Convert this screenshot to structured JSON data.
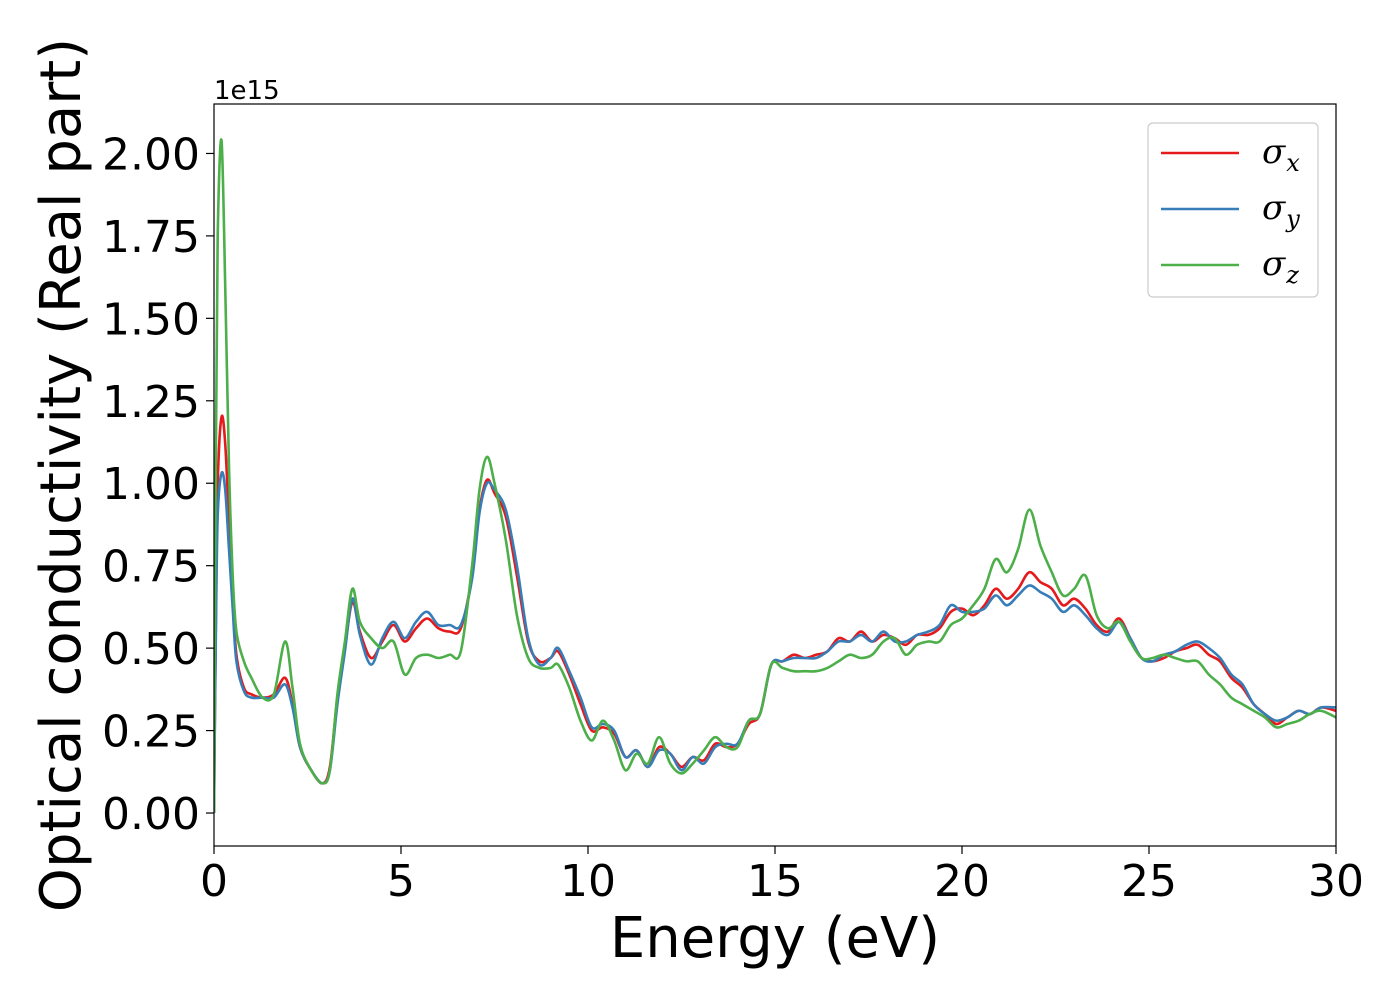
{
  "chart_data": {
    "type": "line",
    "title": "",
    "xlabel": "Energy (eV)",
    "ylabel": "Optical conductivity (Real part)",
    "y_offset_text": "1e15",
    "y_multiplier": 1000000000000000.0,
    "xlim": [
      0,
      30
    ],
    "ylim": [
      -0.1,
      2.15
    ],
    "xticks": [
      0,
      5,
      10,
      15,
      20,
      25,
      30
    ],
    "xtick_labels": [
      "0",
      "5",
      "10",
      "15",
      "20",
      "25",
      "30"
    ],
    "yticks": [
      0.0,
      0.25,
      0.5,
      0.75,
      1.0,
      1.25,
      1.5,
      1.75,
      2.0
    ],
    "ytick_labels": [
      "0.00",
      "0.25",
      "0.50",
      "0.75",
      "1.00",
      "1.25",
      "1.50",
      "1.75",
      "2.00"
    ],
    "grid": false,
    "legend_position": "top-right",
    "series": [
      {
        "name": "σx",
        "symbol": "σ",
        "subscript": "x",
        "color": "#e41a1c",
        "x": [
          0,
          0.05,
          0.1,
          0.2,
          0.3,
          0.4,
          0.5,
          0.6,
          0.8,
          1.0,
          1.3,
          1.6,
          1.9,
          2.1,
          2.3,
          2.6,
          2.9,
          3.1,
          3.3,
          3.5,
          3.7,
          3.9,
          4.2,
          4.5,
          4.8,
          5.1,
          5.4,
          5.7,
          6.0,
          6.3,
          6.6,
          6.9,
          7.1,
          7.3,
          7.5,
          7.8,
          8.1,
          8.4,
          8.7,
          9.0,
          9.2,
          9.5,
          9.8,
          10.1,
          10.4,
          10.7,
          11.0,
          11.3,
          11.6,
          11.9,
          12.2,
          12.5,
          12.8,
          13.1,
          13.4,
          13.7,
          14.0,
          14.3,
          14.6,
          14.9,
          15.2,
          15.5,
          15.8,
          16.1,
          16.4,
          16.7,
          17.0,
          17.3,
          17.6,
          17.9,
          18.2,
          18.5,
          18.8,
          19.1,
          19.4,
          19.7,
          20.0,
          20.3,
          20.6,
          20.9,
          21.2,
          21.5,
          21.8,
          22.1,
          22.4,
          22.7,
          23.0,
          23.3,
          23.6,
          23.9,
          24.2,
          24.5,
          24.8,
          25.1,
          25.4,
          25.7,
          26.0,
          26.3,
          26.6,
          26.9,
          27.2,
          27.5,
          27.8,
          28.1,
          28.4,
          28.7,
          29.0,
          29.3,
          29.6,
          30.0
        ],
        "y": [
          0.0,
          0.6,
          1.0,
          1.2,
          1.12,
          0.88,
          0.65,
          0.48,
          0.38,
          0.36,
          0.35,
          0.36,
          0.41,
          0.33,
          0.2,
          0.13,
          0.09,
          0.14,
          0.35,
          0.5,
          0.64,
          0.55,
          0.47,
          0.52,
          0.57,
          0.52,
          0.56,
          0.59,
          0.56,
          0.55,
          0.56,
          0.72,
          0.92,
          1.01,
          0.97,
          0.9,
          0.72,
          0.52,
          0.46,
          0.47,
          0.49,
          0.42,
          0.33,
          0.25,
          0.26,
          0.24,
          0.17,
          0.19,
          0.14,
          0.2,
          0.18,
          0.14,
          0.17,
          0.16,
          0.21,
          0.2,
          0.21,
          0.27,
          0.3,
          0.45,
          0.46,
          0.48,
          0.47,
          0.48,
          0.49,
          0.53,
          0.52,
          0.55,
          0.52,
          0.54,
          0.53,
          0.51,
          0.54,
          0.54,
          0.56,
          0.61,
          0.62,
          0.6,
          0.63,
          0.68,
          0.65,
          0.68,
          0.73,
          0.7,
          0.68,
          0.63,
          0.65,
          0.62,
          0.57,
          0.55,
          0.59,
          0.53,
          0.47,
          0.46,
          0.47,
          0.49,
          0.5,
          0.51,
          0.48,
          0.46,
          0.41,
          0.38,
          0.33,
          0.3,
          0.27,
          0.29,
          0.31,
          0.3,
          0.32,
          0.31
        ]
      },
      {
        "name": "σy",
        "symbol": "σ",
        "subscript": "y",
        "color": "#377eb8",
        "x": [
          0,
          0.05,
          0.1,
          0.2,
          0.3,
          0.4,
          0.5,
          0.6,
          0.8,
          1.0,
          1.3,
          1.6,
          1.9,
          2.1,
          2.3,
          2.6,
          2.9,
          3.1,
          3.3,
          3.5,
          3.7,
          3.9,
          4.2,
          4.5,
          4.8,
          5.1,
          5.4,
          5.7,
          6.0,
          6.3,
          6.6,
          6.9,
          7.1,
          7.3,
          7.5,
          7.8,
          8.1,
          8.4,
          8.7,
          9.0,
          9.2,
          9.5,
          9.8,
          10.1,
          10.4,
          10.7,
          11.0,
          11.3,
          11.6,
          11.9,
          12.2,
          12.5,
          12.8,
          13.1,
          13.4,
          13.7,
          14.0,
          14.3,
          14.6,
          14.9,
          15.2,
          15.5,
          15.8,
          16.1,
          16.4,
          16.7,
          17.0,
          17.3,
          17.6,
          17.9,
          18.2,
          18.5,
          18.8,
          19.1,
          19.4,
          19.7,
          20.0,
          20.3,
          20.6,
          20.9,
          21.2,
          21.5,
          21.8,
          22.1,
          22.4,
          22.7,
          23.0,
          23.3,
          23.6,
          23.9,
          24.2,
          24.5,
          24.8,
          25.1,
          25.4,
          25.7,
          26.0,
          26.3,
          26.6,
          26.9,
          27.2,
          27.5,
          27.8,
          28.1,
          28.4,
          28.7,
          29.0,
          29.3,
          29.6,
          30.0
        ],
        "y": [
          0.0,
          0.55,
          0.9,
          1.03,
          0.98,
          0.8,
          0.62,
          0.46,
          0.37,
          0.35,
          0.35,
          0.35,
          0.39,
          0.32,
          0.2,
          0.13,
          0.09,
          0.13,
          0.33,
          0.49,
          0.65,
          0.54,
          0.45,
          0.53,
          0.58,
          0.53,
          0.58,
          0.61,
          0.57,
          0.57,
          0.57,
          0.71,
          0.91,
          1.0,
          0.98,
          0.92,
          0.75,
          0.53,
          0.45,
          0.47,
          0.5,
          0.43,
          0.35,
          0.26,
          0.27,
          0.25,
          0.17,
          0.19,
          0.14,
          0.19,
          0.18,
          0.13,
          0.17,
          0.15,
          0.2,
          0.21,
          0.21,
          0.28,
          0.3,
          0.45,
          0.46,
          0.47,
          0.47,
          0.47,
          0.49,
          0.52,
          0.52,
          0.54,
          0.52,
          0.55,
          0.52,
          0.52,
          0.54,
          0.55,
          0.57,
          0.63,
          0.61,
          0.61,
          0.62,
          0.66,
          0.63,
          0.66,
          0.69,
          0.67,
          0.65,
          0.61,
          0.63,
          0.6,
          0.56,
          0.54,
          0.58,
          0.53,
          0.47,
          0.46,
          0.48,
          0.49,
          0.51,
          0.52,
          0.5,
          0.47,
          0.42,
          0.39,
          0.33,
          0.3,
          0.28,
          0.29,
          0.31,
          0.3,
          0.32,
          0.32
        ]
      },
      {
        "name": "σz",
        "symbol": "σ",
        "subscript": "z",
        "color": "#4daf4a",
        "x": [
          0,
          0.05,
          0.1,
          0.2,
          0.3,
          0.4,
          0.5,
          0.6,
          0.8,
          1.0,
          1.3,
          1.6,
          1.9,
          2.1,
          2.3,
          2.6,
          2.9,
          3.1,
          3.3,
          3.5,
          3.7,
          3.9,
          4.2,
          4.5,
          4.8,
          5.1,
          5.4,
          5.7,
          6.0,
          6.3,
          6.6,
          6.9,
          7.1,
          7.3,
          7.5,
          7.8,
          8.1,
          8.4,
          8.7,
          9.0,
          9.2,
          9.5,
          9.8,
          10.1,
          10.4,
          10.7,
          11.0,
          11.3,
          11.6,
          11.9,
          12.2,
          12.5,
          12.8,
          13.1,
          13.4,
          13.7,
          14.0,
          14.3,
          14.6,
          14.9,
          15.2,
          15.5,
          15.8,
          16.1,
          16.4,
          16.7,
          17.0,
          17.3,
          17.6,
          17.9,
          18.2,
          18.5,
          18.8,
          19.1,
          19.4,
          19.7,
          20.0,
          20.3,
          20.6,
          20.9,
          21.2,
          21.5,
          21.8,
          22.1,
          22.4,
          22.7,
          23.0,
          23.3,
          23.6,
          23.9,
          24.2,
          24.5,
          24.8,
          25.1,
          25.4,
          25.7,
          26.0,
          26.3,
          26.6,
          26.9,
          27.2,
          27.5,
          27.8,
          28.1,
          28.4,
          28.7,
          29.0,
          29.3,
          29.6,
          30.0
        ],
        "y": [
          0.0,
          1.1,
          1.75,
          2.04,
          1.6,
          1.05,
          0.72,
          0.55,
          0.46,
          0.41,
          0.35,
          0.36,
          0.52,
          0.38,
          0.21,
          0.13,
          0.09,
          0.13,
          0.36,
          0.52,
          0.68,
          0.58,
          0.53,
          0.5,
          0.52,
          0.42,
          0.47,
          0.48,
          0.47,
          0.48,
          0.49,
          0.75,
          0.98,
          1.08,
          1.0,
          0.83,
          0.6,
          0.47,
          0.44,
          0.44,
          0.45,
          0.38,
          0.28,
          0.22,
          0.28,
          0.22,
          0.13,
          0.18,
          0.15,
          0.23,
          0.15,
          0.12,
          0.15,
          0.19,
          0.23,
          0.2,
          0.2,
          0.28,
          0.3,
          0.45,
          0.44,
          0.43,
          0.43,
          0.43,
          0.44,
          0.46,
          0.48,
          0.47,
          0.48,
          0.52,
          0.53,
          0.48,
          0.51,
          0.52,
          0.52,
          0.57,
          0.59,
          0.63,
          0.68,
          0.77,
          0.73,
          0.8,
          0.92,
          0.81,
          0.73,
          0.66,
          0.68,
          0.72,
          0.6,
          0.56,
          0.58,
          0.52,
          0.47,
          0.47,
          0.48,
          0.47,
          0.46,
          0.46,
          0.42,
          0.39,
          0.35,
          0.33,
          0.31,
          0.29,
          0.26,
          0.27,
          0.28,
          0.3,
          0.31,
          0.29
        ]
      }
    ]
  }
}
